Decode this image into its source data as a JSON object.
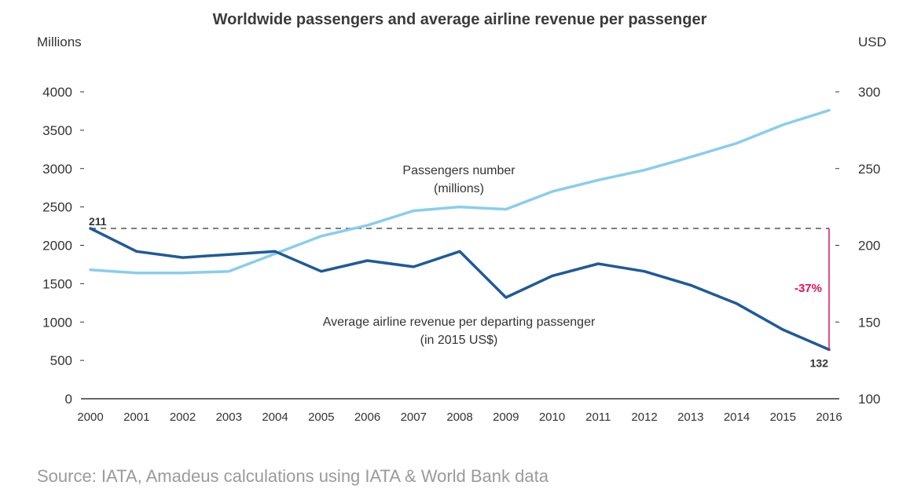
{
  "chart_data": {
    "type": "line",
    "title": "Worldwide passengers and average airline revenue per passenger",
    "left_unit": "Millions",
    "right_unit": "USD",
    "x": [
      "2000",
      "2001",
      "2002",
      "2003",
      "2004",
      "2005",
      "2006",
      "2007",
      "2008",
      "2009",
      "2010",
      "2011",
      "2012",
      "2013",
      "2014",
      "2015",
      "2016"
    ],
    "y_left_ticks": [
      "0",
      "500",
      "1000",
      "1500",
      "2000",
      "2500",
      "3000",
      "3500",
      "4000"
    ],
    "y_right_ticks": [
      "100",
      "150",
      "200",
      "250",
      "300"
    ],
    "ylim_left": [
      0,
      4000
    ],
    "ylim_right": [
      100,
      300
    ],
    "series": [
      {
        "name": "Passengers number (millions)",
        "label_line1": "Passengers number",
        "label_line2": "(millions)",
        "axis": "left",
        "color": "#89cdee",
        "values": [
          1680,
          1640,
          1640,
          1660,
          1890,
          2120,
          2260,
          2450,
          2500,
          2470,
          2700,
          2850,
          2980,
          3150,
          3330,
          3570,
          3760
        ]
      },
      {
        "name": "Average airline revenue per departing passenger (in 2015 US$)",
        "label_line1": "Average airline revenue per departing passenger",
        "label_line2": "(in 2015 US$)",
        "axis": "right",
        "color": "#1e5a9a",
        "values": [
          211,
          196,
          192,
          194,
          196,
          183,
          190,
          186,
          196,
          166,
          180,
          188,
          183,
          174,
          162,
          145,
          132
        ]
      }
    ],
    "annotations": {
      "start_label": "211",
      "end_label": "132",
      "change_label": "-37%",
      "reference_value": 211
    }
  },
  "source": "Source:  IATA, Amadeus calculations using IATA & World Bank data"
}
